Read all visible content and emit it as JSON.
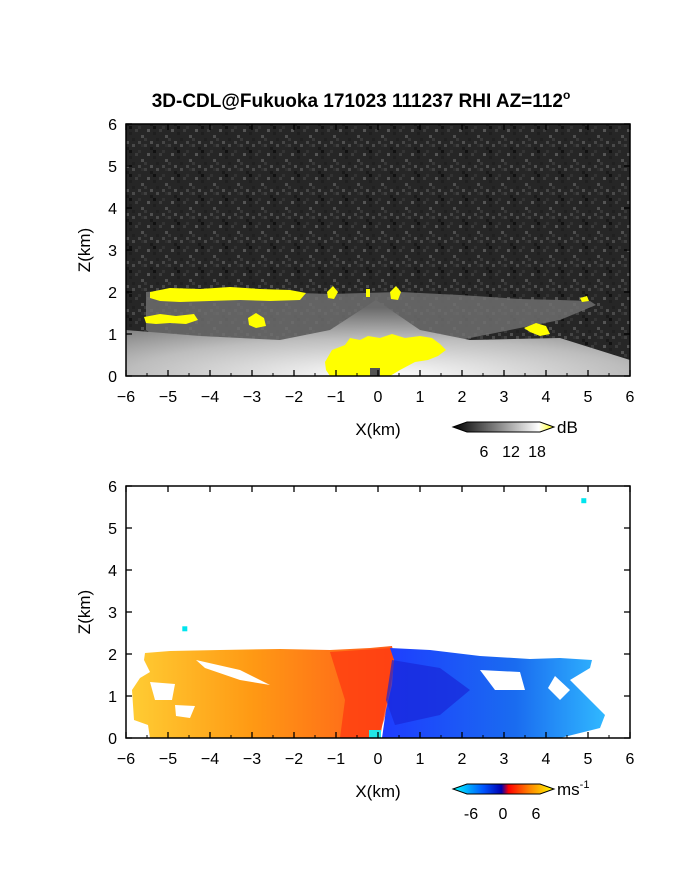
{
  "title": "3D-CDL@Fukuoka 171023 111237 RHI AZ=112",
  "title_superscript": "o",
  "chart_data": [
    {
      "type": "heatmap",
      "variable": "signal intensity",
      "xlabel": "X(km)",
      "ylabel": "Z(km)",
      "xlim": [
        -6,
        6
      ],
      "ylim": [
        0,
        6
      ],
      "xticks": [
        "-6",
        "-5",
        "-4",
        "-3",
        "-2",
        "-1",
        "0",
        "1",
        "2",
        "3",
        "4",
        "5",
        "6"
      ],
      "yticks": [
        "0",
        "1",
        "2",
        "3",
        "4",
        "5",
        "6"
      ],
      "colormap": [
        "#000000",
        "#ffffff",
        "#ffff00"
      ],
      "colorbar": {
        "unit": "dB",
        "ticks": [
          "6",
          "12",
          "18"
        ]
      },
      "top_of_echo_km": [
        {
          "x": -5.6,
          "z": 2.0
        },
        {
          "x": -4.0,
          "z": 2.0
        },
        {
          "x": -2.0,
          "z": 2.0
        },
        {
          "x": -1.0,
          "z": 2.0
        },
        {
          "x": 0.0,
          "z": 2.0
        },
        {
          "x": 1.0,
          "z": 2.0
        },
        {
          "x": 3.0,
          "z": 1.9
        },
        {
          "x": 5.0,
          "z": 1.8
        }
      ],
      "strong_echo_regions": [
        {
          "name": "near-radar bright region",
          "x": [
            -1.2,
            1.8
          ],
          "z": [
            0,
            0.9
          ]
        },
        {
          "name": "cloud-top band",
          "x": [
            -5.6,
            -1.7
          ],
          "z": [
            1.8,
            2.1
          ]
        },
        {
          "name": "low layer patch",
          "x": [
            -5.6,
            -4.5
          ],
          "z": [
            1.2,
            1.5
          ]
        },
        {
          "name": "patch near x=-3",
          "x": [
            -3.2,
            -2.7
          ],
          "z": [
            1.1,
            1.4
          ]
        },
        {
          "name": "patch near x=3.8",
          "x": [
            3.5,
            4.1
          ],
          "z": [
            1.0,
            1.2
          ]
        }
      ]
    },
    {
      "type": "heatmap",
      "variable": "Doppler velocity",
      "xlabel": "X(km)",
      "ylabel": "Z(km)",
      "xlim": [
        -6,
        6
      ],
      "ylim": [
        0,
        6
      ],
      "xticks": [
        "-6",
        "-5",
        "-4",
        "-3",
        "-2",
        "-1",
        "0",
        "1",
        "2",
        "3",
        "4",
        "5",
        "6"
      ],
      "yticks": [
        "0",
        "1",
        "2",
        "3",
        "4",
        "5",
        "6"
      ],
      "colormap": [
        "#00ffff",
        "#0055ff",
        "#0000c0",
        "#ff0000",
        "#ff8000",
        "#ffff00"
      ],
      "colorbar": {
        "unit": "ms",
        "unit_exponent": "-1",
        "ticks": [
          "-6",
          "0",
          "6"
        ]
      },
      "regions": [
        {
          "name": "receding (positive) velocities",
          "x": [
            -5.8,
            0.5
          ],
          "z": [
            0,
            2.1
          ],
          "velocity_ms": 4
        },
        {
          "name": "approaching (negative) velocities",
          "x": [
            0.2,
            5.2
          ],
          "z": [
            0,
            2.0
          ],
          "velocity_ms": -4
        },
        {
          "name": "isolated point",
          "x": [
            -4.6,
            -4.6
          ],
          "z": [
            2.6,
            2.6
          ],
          "velocity_ms": -6
        },
        {
          "name": "isolated point",
          "x": [
            4.9,
            4.9
          ],
          "z": [
            5.65,
            5.65
          ],
          "velocity_ms": -6
        }
      ]
    }
  ]
}
